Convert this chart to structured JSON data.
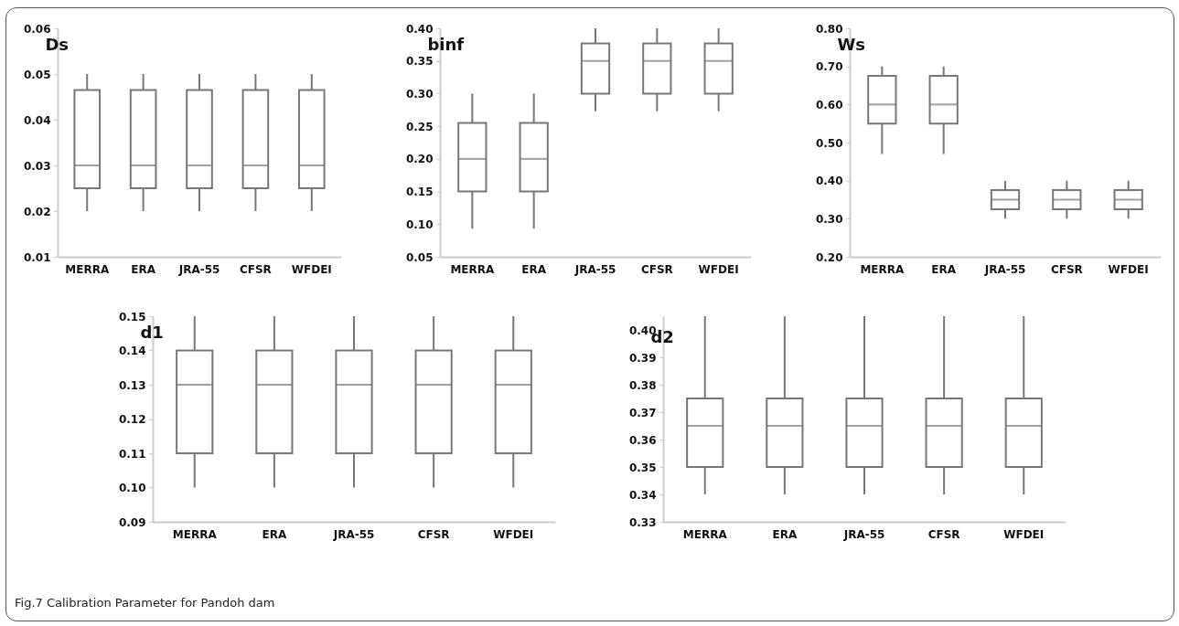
{
  "chart_data": [
    {
      "type": "box",
      "title": "Ds",
      "categories": [
        "MERRA",
        "ERA",
        "JRA-55",
        "CFSR",
        "WFDEI"
      ],
      "boxes": [
        {
          "low": 0.02,
          "q1": 0.025,
          "median": 0.03,
          "q3": 0.0465,
          "high": 0.05
        },
        {
          "low": 0.02,
          "q1": 0.025,
          "median": 0.03,
          "q3": 0.0465,
          "high": 0.05
        },
        {
          "low": 0.02,
          "q1": 0.025,
          "median": 0.03,
          "q3": 0.0465,
          "high": 0.05
        },
        {
          "low": 0.02,
          "q1": 0.025,
          "median": 0.03,
          "q3": 0.0465,
          "high": 0.05
        },
        {
          "low": 0.02,
          "q1": 0.025,
          "median": 0.03,
          "q3": 0.0465,
          "high": 0.05
        }
      ],
      "ylim": [
        0.01,
        0.06
      ],
      "yticks": [
        {
          "value": 0.01,
          "label": "0.01"
        },
        {
          "value": 0.02,
          "label": "0.02"
        },
        {
          "value": 0.03,
          "label": "0.03"
        },
        {
          "value": 0.04,
          "label": "0.04"
        },
        {
          "value": 0.05,
          "label": "0.05"
        },
        {
          "value": 0.06,
          "label": "0.06"
        }
      ]
    },
    {
      "type": "box",
      "title": "binf",
      "categories": [
        "MERRA",
        "ERA",
        "JRA-55",
        "CFSR",
        "WFDEI"
      ],
      "boxes": [
        {
          "low": 0.093,
          "q1": 0.15,
          "median": 0.2,
          "q3": 0.255,
          "high": 0.3
        },
        {
          "low": 0.093,
          "q1": 0.15,
          "median": 0.2,
          "q3": 0.255,
          "high": 0.3
        },
        {
          "low": 0.273,
          "q1": 0.3,
          "median": 0.35,
          "q3": 0.377,
          "high": 0.4
        },
        {
          "low": 0.273,
          "q1": 0.3,
          "median": 0.35,
          "q3": 0.377,
          "high": 0.4
        },
        {
          "low": 0.273,
          "q1": 0.3,
          "median": 0.35,
          "q3": 0.377,
          "high": 0.4
        }
      ],
      "ylim": [
        0.05,
        0.4
      ],
      "yticks": [
        {
          "value": 0.05,
          "label": "0.05"
        },
        {
          "value": 0.1,
          "label": "0.10"
        },
        {
          "value": 0.15,
          "label": "0.15"
        },
        {
          "value": 0.2,
          "label": "0.20"
        },
        {
          "value": 0.25,
          "label": "0.25"
        },
        {
          "value": 0.3,
          "label": "0.30"
        },
        {
          "value": 0.35,
          "label": "0.35"
        },
        {
          "value": 0.4,
          "label": "0.40"
        }
      ]
    },
    {
      "type": "box",
      "title": "Ws",
      "categories": [
        "MERRA",
        "ERA",
        "JRA-55",
        "CFSR",
        "WFDEI"
      ],
      "boxes": [
        {
          "low": 0.47,
          "q1": 0.55,
          "median": 0.6,
          "q3": 0.675,
          "high": 0.7
        },
        {
          "low": 0.47,
          "q1": 0.55,
          "median": 0.6,
          "q3": 0.675,
          "high": 0.7
        },
        {
          "low": 0.3,
          "q1": 0.325,
          "median": 0.35,
          "q3": 0.375,
          "high": 0.4
        },
        {
          "low": 0.3,
          "q1": 0.325,
          "median": 0.35,
          "q3": 0.375,
          "high": 0.4
        },
        {
          "low": 0.3,
          "q1": 0.325,
          "median": 0.35,
          "q3": 0.375,
          "high": 0.4
        }
      ],
      "ylim": [
        0.2,
        0.8
      ],
      "yticks": [
        {
          "value": 0.2,
          "label": "0.20"
        },
        {
          "value": 0.3,
          "label": "0.30"
        },
        {
          "value": 0.4,
          "label": "0.40"
        },
        {
          "value": 0.5,
          "label": "0.50"
        },
        {
          "value": 0.6,
          "label": "0.60"
        },
        {
          "value": 0.7,
          "label": "0.70"
        },
        {
          "value": 0.8,
          "label": "0.80"
        }
      ]
    },
    {
      "type": "box",
      "title": "d1",
      "categories": [
        "MERRA",
        "ERA",
        "JRA-55",
        "CFSR",
        "WFDEI"
      ],
      "boxes": [
        {
          "low": 0.1,
          "q1": 0.11,
          "median": 0.13,
          "q3": 0.14,
          "high": 0.15
        },
        {
          "low": 0.1,
          "q1": 0.11,
          "median": 0.13,
          "q3": 0.14,
          "high": 0.15
        },
        {
          "low": 0.1,
          "q1": 0.11,
          "median": 0.13,
          "q3": 0.14,
          "high": 0.15
        },
        {
          "low": 0.1,
          "q1": 0.11,
          "median": 0.13,
          "q3": 0.14,
          "high": 0.15
        },
        {
          "low": 0.1,
          "q1": 0.11,
          "median": 0.13,
          "q3": 0.14,
          "high": 0.15
        }
      ],
      "ylim": [
        0.09,
        0.15
      ],
      "yticks": [
        {
          "value": 0.09,
          "label": "0.09"
        },
        {
          "value": 0.1,
          "label": "0.10"
        },
        {
          "value": 0.11,
          "label": "0.11"
        },
        {
          "value": 0.12,
          "label": "0.12"
        },
        {
          "value": 0.13,
          "label": "0.13"
        },
        {
          "value": 0.14,
          "label": "0.14"
        },
        {
          "value": 0.15,
          "label": "0.15"
        }
      ],
      "annotations": [
        "Fig.7 Calibration Parameter for Pandoh dam"
      ]
    },
    {
      "type": "box",
      "title": "d2",
      "categories": [
        "MERRA",
        "ERA",
        "JRA-55",
        "CFSR",
        "WFDEI"
      ],
      "boxes": [
        {
          "low": 0.34,
          "q1": 0.35,
          "median": 0.365,
          "q3": 0.375,
          "high": 0.405
        },
        {
          "low": 0.34,
          "q1": 0.35,
          "median": 0.365,
          "q3": 0.375,
          "high": 0.405
        },
        {
          "low": 0.34,
          "q1": 0.35,
          "median": 0.365,
          "q3": 0.375,
          "high": 0.405
        },
        {
          "low": 0.34,
          "q1": 0.35,
          "median": 0.365,
          "q3": 0.375,
          "high": 0.405
        },
        {
          "low": 0.34,
          "q1": 0.35,
          "median": 0.365,
          "q3": 0.375,
          "high": 0.405
        }
      ],
      "ylim": [
        0.33,
        0.405
      ],
      "yticks": [
        {
          "value": 0.33,
          "label": "0.33"
        },
        {
          "value": 0.34,
          "label": "0.34"
        },
        {
          "value": 0.35,
          "label": "0.35"
        },
        {
          "value": 0.36,
          "label": "0.36"
        },
        {
          "value": 0.37,
          "label": "0.37"
        },
        {
          "value": 0.38,
          "label": "0.38"
        },
        {
          "value": 0.39,
          "label": "0.39"
        },
        {
          "value": 0.4,
          "label": "0.40"
        }
      ]
    }
  ]
}
